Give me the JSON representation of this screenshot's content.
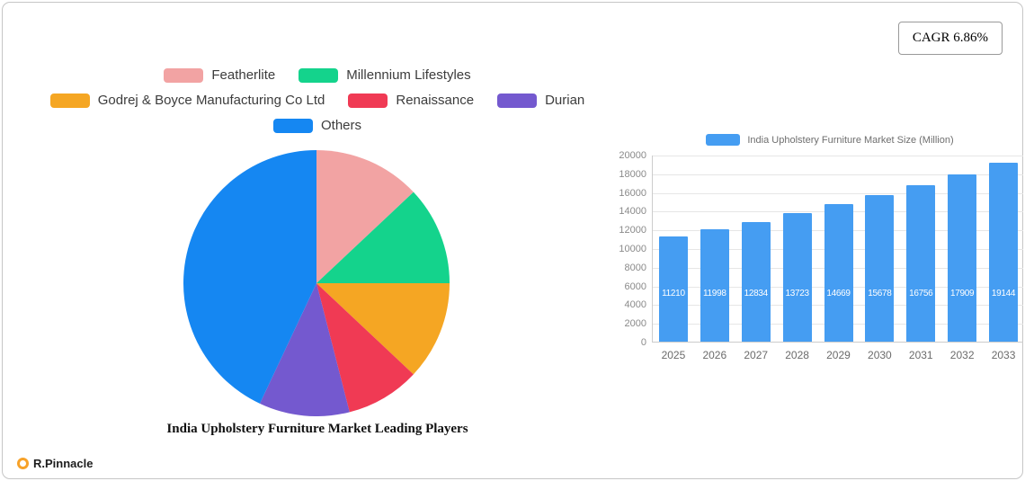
{
  "cagr_badge": "CAGR 6.86%",
  "brand": {
    "name": "R.Pinnacle"
  },
  "chart_data": [
    {
      "type": "pie",
      "title": "India Upholstery Furniture Market Leading Players",
      "slices": [
        {
          "label": "Featherlite",
          "value": 13,
          "color": "#f2a3a3"
        },
        {
          "label": "Millennium Lifestyles",
          "value": 12,
          "color": "#14d38c"
        },
        {
          "label": "Godrej & Boyce Manufacturing Co  Ltd",
          "value": 12,
          "color": "#f5a623"
        },
        {
          "label": "Renaissance",
          "value": 9,
          "color": "#f03a54"
        },
        {
          "label": "Durian",
          "value": 11,
          "color": "#7459cf"
        },
        {
          "label": "Others",
          "value": 43,
          "color": "#1587f2"
        }
      ],
      "legend_rows": [
        [
          0,
          1
        ],
        [
          2,
          3,
          4
        ],
        [
          5
        ]
      ],
      "start_angle": "top",
      "direction": "clockwise"
    },
    {
      "type": "bar",
      "legend": "India Upholstery Furniture Market Size (Million)",
      "categories": [
        "2025",
        "2026",
        "2027",
        "2028",
        "2029",
        "2030",
        "2031",
        "2032",
        "2033"
      ],
      "values": [
        11210,
        11998,
        12834,
        13723,
        14669,
        15678,
        16756,
        17909,
        19144
      ],
      "ylim": [
        0,
        20000
      ],
      "ytick_step": 2000,
      "bar_color": "#459df2",
      "grid": true,
      "legend_position": "top"
    }
  ]
}
